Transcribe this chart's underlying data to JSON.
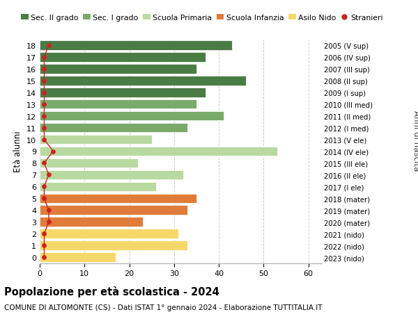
{
  "ages": [
    18,
    17,
    16,
    15,
    14,
    13,
    12,
    11,
    10,
    9,
    8,
    7,
    6,
    5,
    4,
    3,
    2,
    1,
    0
  ],
  "values": [
    43,
    37,
    35,
    46,
    37,
    35,
    41,
    33,
    25,
    53,
    22,
    32,
    26,
    35,
    33,
    23,
    31,
    33,
    17
  ],
  "stranieri": [
    2,
    1,
    1,
    1,
    1,
    1,
    1,
    1,
    1,
    3,
    1,
    2,
    1,
    1,
    2,
    2,
    1,
    1,
    1
  ],
  "bar_colors": [
    "#4a7c45",
    "#4a7c45",
    "#4a7c45",
    "#4a7c45",
    "#4a7c45",
    "#7aaa6a",
    "#7aaa6a",
    "#7aaa6a",
    "#b8d9a0",
    "#b8d9a0",
    "#b8d9a0",
    "#b8d9a0",
    "#b8d9a0",
    "#e07c3a",
    "#e07c3a",
    "#e07c3a",
    "#f5d86a",
    "#f5d86a",
    "#f5d86a"
  ],
  "right_labels": [
    "2005 (V sup)",
    "2006 (IV sup)",
    "2007 (III sup)",
    "2008 (II sup)",
    "2009 (I sup)",
    "2010 (III med)",
    "2011 (II med)",
    "2012 (I med)",
    "2013 (V ele)",
    "2014 (IV ele)",
    "2015 (III ele)",
    "2016 (II ele)",
    "2017 (I ele)",
    "2018 (mater)",
    "2019 (mater)",
    "2020 (mater)",
    "2021 (nido)",
    "2022 (nido)",
    "2023 (nido)"
  ],
  "legend_labels": [
    "Sec. II grado",
    "Sec. I grado",
    "Scuola Primaria",
    "Scuola Infanzia",
    "Asilo Nido",
    "Stranieri"
  ],
  "legend_colors": [
    "#4a7c45",
    "#7aaa6a",
    "#b8d9a0",
    "#e07c3a",
    "#f5d86a",
    "#cc2222"
  ],
  "ylabel": "Età alunni",
  "right_ylabel": "Anni di nascita",
  "title": "Popolazione per età scolastica - 2024",
  "subtitle": "COMUNE DI ALTOMONTE (CS) - Dati ISTAT 1° gennaio 2024 - Elaborazione TUTTITALIA.IT",
  "xlim": [
    0,
    63
  ],
  "ylim": [
    -0.5,
    18.5
  ],
  "xticks": [
    0,
    10,
    20,
    30,
    40,
    50,
    60
  ],
  "background_color": "#ffffff",
  "grid_color": "#cccccc"
}
